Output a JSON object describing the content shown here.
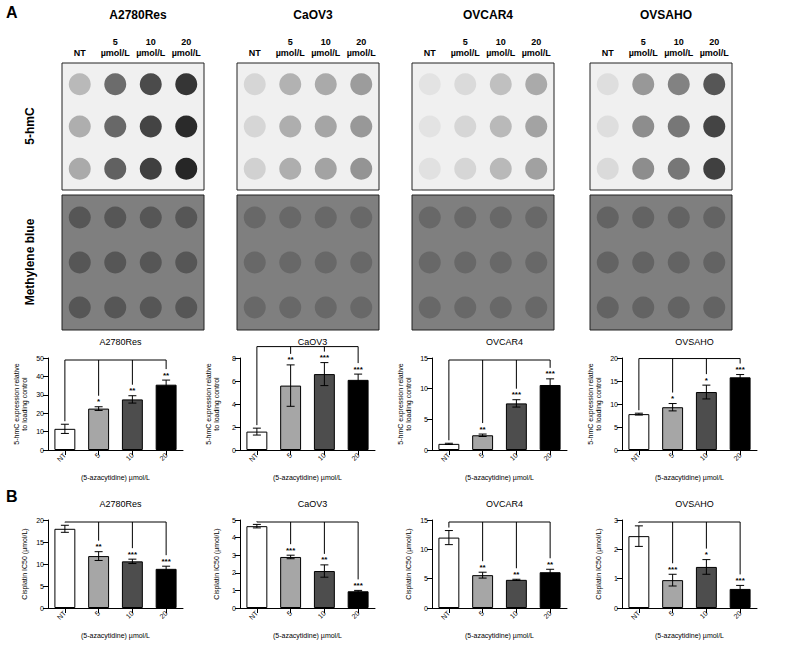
{
  "figure": {
    "panel_labels": [
      "A",
      "B"
    ]
  },
  "dot_blot": {
    "row_labels": [
      "5-hmC",
      "Methylene blue"
    ],
    "concentrations": [
      "NT",
      "5 µmol/L",
      "10 µmol/L",
      "20 µmol/L"
    ],
    "intensity_range": [
      0,
      100
    ],
    "cell_lines": [
      {
        "name": "A2780Res",
        "5-hmC": [
          [
            25,
            60,
            75,
            85
          ],
          [
            30,
            62,
            78,
            90
          ],
          [
            32,
            65,
            80,
            92
          ]
        ],
        "Methylene blue": [
          [
            70,
            70,
            70,
            70
          ],
          [
            70,
            70,
            70,
            70
          ],
          [
            70,
            70,
            70,
            70
          ]
        ]
      },
      {
        "name": "CaOV3",
        "5-hmC": [
          [
            12,
            28,
            32,
            38
          ],
          [
            12,
            30,
            34,
            40
          ],
          [
            14,
            30,
            35,
            42
          ]
        ],
        "Methylene blue": [
          [
            62,
            62,
            62,
            62
          ],
          [
            62,
            62,
            62,
            62
          ],
          [
            62,
            62,
            62,
            62
          ]
        ]
      },
      {
        "name": "OVCAR4",
        "5-hmC": [
          [
            6,
            10,
            22,
            32
          ],
          [
            6,
            12,
            25,
            35
          ],
          [
            7,
            12,
            25,
            36
          ]
        ],
        "Methylene blue": [
          [
            62,
            62,
            62,
            62
          ],
          [
            62,
            62,
            62,
            62
          ],
          [
            62,
            62,
            62,
            62
          ]
        ]
      },
      {
        "name": "OVSAHO",
        "5-hmC": [
          [
            8,
            40,
            50,
            70
          ],
          [
            8,
            45,
            55,
            78
          ],
          [
            10,
            45,
            55,
            80
          ]
        ],
        "Methylene blue": [
          [
            64,
            64,
            64,
            64
          ],
          [
            64,
            64,
            64,
            64
          ],
          [
            64,
            64,
            64,
            64
          ]
        ]
      }
    ]
  },
  "chart_data": [
    {
      "type": "bar",
      "title": "A2780Res",
      "categories": [
        "NT",
        "5",
        "10",
        "20"
      ],
      "values": [
        11.5,
        22.5,
        27.5,
        35.5
      ],
      "errors": [
        2.5,
        1,
        2,
        2.5
      ],
      "significance": [
        null,
        "*",
        "**",
        "**"
      ],
      "colors": [
        "#ffffff",
        "#a6a6a6",
        "#4d4d4d",
        "#000000"
      ],
      "x_label": "(5-azacytidine) µmol/L",
      "y_label": "5-hmC expression relative\nto loading control",
      "ylim": [
        0,
        50
      ],
      "yticks": [
        0,
        10,
        20,
        30,
        40,
        50
      ]
    },
    {
      "type": "bar",
      "title": "CaOV3",
      "categories": [
        "NT",
        "5",
        "10",
        "20"
      ],
      "values": [
        1.6,
        5.6,
        6.6,
        6.1
      ],
      "errors": [
        0.3,
        1.8,
        1,
        0.5
      ],
      "significance": [
        null,
        "**",
        "***",
        "***"
      ],
      "colors": [
        "#ffffff",
        "#a6a6a6",
        "#4d4d4d",
        "#000000"
      ],
      "x_label": "(5-azacytidine) µmol/L",
      "y_label": "5-hmC expression relative\nto loading control",
      "ylim": [
        0,
        8
      ],
      "yticks": [
        0,
        2,
        4,
        6,
        8
      ]
    },
    {
      "type": "bar",
      "title": "OVCAR4",
      "categories": [
        "NT",
        "5",
        "10",
        "20"
      ],
      "values": [
        1,
        2.4,
        7.6,
        10.6
      ],
      "errors": [
        0.1,
        0.2,
        0.6,
        1
      ],
      "significance": [
        null,
        "**",
        "***",
        "***"
      ],
      "colors": [
        "#ffffff",
        "#a6a6a6",
        "#4d4d4d",
        "#000000"
      ],
      "x_label": "(5-azacytidine) µmol/L",
      "y_label": "5-hmC expression relative\nto loading control",
      "ylim": [
        0,
        15
      ],
      "yticks": [
        0,
        5,
        10,
        15
      ]
    },
    {
      "type": "bar",
      "title": "OVSAHO",
      "categories": [
        "NT",
        "5",
        "10",
        "20"
      ],
      "values": [
        7.8,
        9.3,
        12.6,
        15.8
      ],
      "errors": [
        0.2,
        0.8,
        1.5,
        0.6
      ],
      "significance": [
        null,
        "*",
        "*",
        "***"
      ],
      "colors": [
        "#ffffff",
        "#a6a6a6",
        "#4d4d4d",
        "#000000"
      ],
      "x_label": "(5-azacytidine) µmol/L",
      "y_label": "5-hmC expression relative\nto loading control",
      "ylim": [
        0,
        20
      ],
      "yticks": [
        0,
        5,
        10,
        15,
        20
      ]
    },
    {
      "type": "bar",
      "title": "A2780Res",
      "categories": [
        "NT",
        "5",
        "10",
        "20"
      ],
      "values": [
        18,
        11.8,
        10.6,
        8.9
      ],
      "errors": [
        0.8,
        1,
        0.5,
        0.6
      ],
      "significance": [
        null,
        "**",
        "***",
        "***"
      ],
      "colors": [
        "#ffffff",
        "#a6a6a6",
        "#4d4d4d",
        "#000000"
      ],
      "x_label": "(5-azacytidine) µmol/L",
      "y_label": "Cisplatin IC50 (µmol/L)",
      "ylim": [
        0,
        20
      ],
      "yticks": [
        0,
        5,
        10,
        15,
        20
      ]
    },
    {
      "type": "bar",
      "title": "CaOV3",
      "categories": [
        "NT",
        "5",
        "10",
        "20"
      ],
      "values": [
        4.65,
        2.9,
        2.1,
        0.95
      ],
      "errors": [
        0.1,
        0.1,
        0.35,
        0.05
      ],
      "significance": [
        null,
        "***",
        "**",
        "***"
      ],
      "colors": [
        "#ffffff",
        "#a6a6a6",
        "#4d4d4d",
        "#000000"
      ],
      "x_label": "(5-azacytidine) µmol/L",
      "y_label": "Cisplatin IC50 (µmol/L)",
      "ylim": [
        0,
        5
      ],
      "yticks": [
        0,
        1,
        2,
        3,
        4,
        5
      ]
    },
    {
      "type": "bar",
      "title": "OVCAR4",
      "categories": [
        "NT",
        "5",
        "10",
        "20"
      ],
      "values": [
        12,
        5.6,
        4.8,
        6.1
      ],
      "errors": [
        1.2,
        0.5,
        0.1,
        0.5
      ],
      "significance": [
        null,
        "**",
        "**",
        "**"
      ],
      "colors": [
        "#ffffff",
        "#a6a6a6",
        "#4d4d4d",
        "#000000"
      ],
      "x_label": "(5-azacytidine) µmol/L",
      "y_label": "Cisplatin IC50 (µmol/L)",
      "ylim": [
        0,
        15
      ],
      "yticks": [
        0,
        5,
        10,
        15
      ]
    },
    {
      "type": "bar",
      "title": "OVSAHO",
      "categories": [
        "NT",
        "5",
        "10",
        "20"
      ],
      "values": [
        2.45,
        0.95,
        1.4,
        0.65
      ],
      "errors": [
        0.35,
        0.2,
        0.25,
        0.12
      ],
      "significance": [
        null,
        "***",
        "*",
        "***"
      ],
      "colors": [
        "#ffffff",
        "#a6a6a6",
        "#4d4d4d",
        "#000000"
      ],
      "x_label": "(5-azacytidine) µmol/L",
      "y_label": "Cisplatin IC50 (µmol/L)",
      "ylim": [
        0,
        3
      ],
      "yticks": [
        0,
        1,
        2,
        3
      ]
    }
  ]
}
